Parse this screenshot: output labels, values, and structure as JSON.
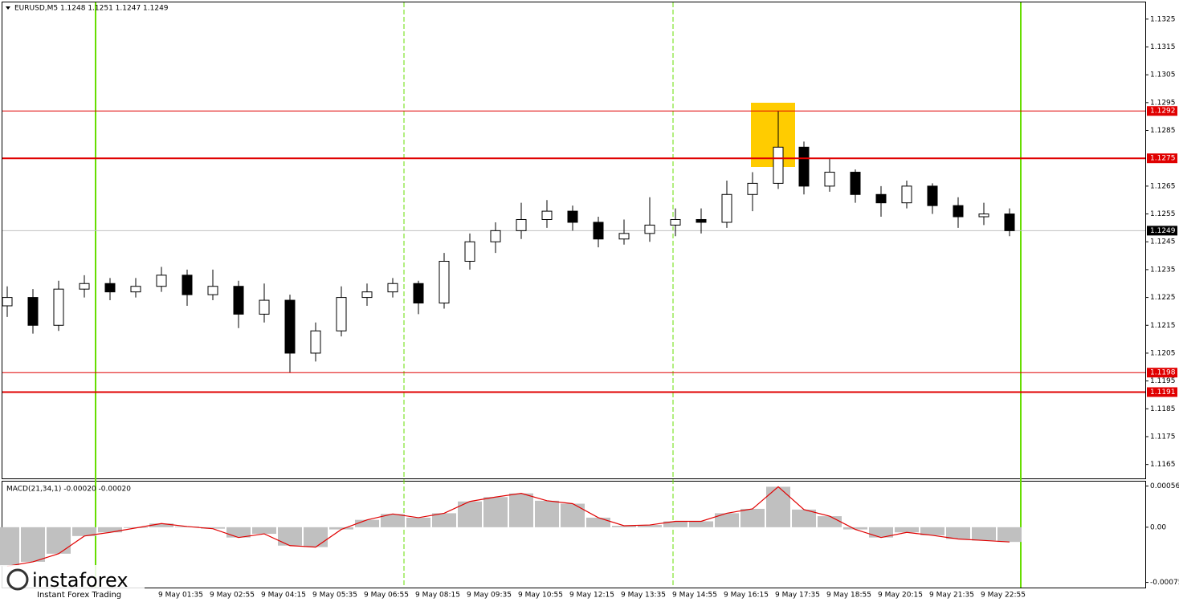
{
  "chart_data": {
    "type": "candlestick",
    "title": "EURUSD,M5  1.1248 1.1251 1.1247 1.1249",
    "open": [
      1.1222,
      1.1225,
      1.1215,
      1.1228,
      1.123,
      1.1227,
      1.1229,
      1.1233,
      1.1226,
      1.1229,
      1.1219,
      1.1224,
      1.1205,
      1.1213,
      1.1225,
      1.1227,
      1.123,
      1.1223,
      1.1238,
      1.1245,
      1.1249,
      1.1253,
      1.1256,
      1.1252,
      1.1246,
      1.1248,
      1.1251,
      1.1253,
      1.1252,
      1.1262,
      1.1266,
      1.1279,
      1.1265,
      1.127,
      1.1262,
      1.1259,
      1.1265,
      1.1258,
      1.1254,
      1.1255
    ],
    "high": [
      1.1229,
      1.1228,
      1.1231,
      1.1233,
      1.1232,
      1.1232,
      1.1236,
      1.1235,
      1.1235,
      1.1231,
      1.123,
      1.1226,
      1.1216,
      1.1229,
      1.123,
      1.1232,
      1.1231,
      1.1241,
      1.1248,
      1.1252,
      1.1259,
      1.126,
      1.1258,
      1.1254,
      1.1253,
      1.1261,
      1.1257,
      1.1257,
      1.1267,
      1.127,
      1.1292,
      1.1281,
      1.1275,
      1.1271,
      1.1265,
      1.1267,
      1.1266,
      1.1261,
      1.1259,
      1.1257
    ],
    "low": [
      1.1218,
      1.1212,
      1.1213,
      1.1225,
      1.1224,
      1.1225,
      1.1227,
      1.1222,
      1.1224,
      1.1214,
      1.1216,
      1.1198,
      1.1202,
      1.1211,
      1.1222,
      1.1225,
      1.1219,
      1.1221,
      1.1235,
      1.1241,
      1.1246,
      1.125,
      1.1249,
      1.1243,
      1.1244,
      1.1245,
      1.1247,
      1.1248,
      1.125,
      1.1256,
      1.1264,
      1.1262,
      1.1263,
      1.1259,
      1.1254,
      1.1257,
      1.1255,
      1.125,
      1.1251,
      1.1247
    ],
    "close": [
      1.1225,
      1.1215,
      1.1228,
      1.123,
      1.1227,
      1.1229,
      1.1233,
      1.1226,
      1.1229,
      1.1219,
      1.1224,
      1.1205,
      1.1213,
      1.1225,
      1.1227,
      1.123,
      1.1223,
      1.1238,
      1.1245,
      1.1249,
      1.1253,
      1.1256,
      1.1252,
      1.1246,
      1.1248,
      1.1251,
      1.1253,
      1.1252,
      1.1262,
      1.1266,
      1.1279,
      1.1265,
      1.127,
      1.1262,
      1.1259,
      1.1265,
      1.1258,
      1.1254,
      1.1255,
      1.1249
    ],
    "up_color": "#ffffff",
    "down_color": "#000000",
    "ylim": [
      1.116,
      1.1331
    ],
    "yticks": [
      1.1325,
      1.1315,
      1.1305,
      1.1295,
      1.1285,
      1.1265,
      1.1255,
      1.1245,
      1.1235,
      1.1225,
      1.1215,
      1.1205,
      1.1195,
      1.1185,
      1.1175,
      1.1165
    ],
    "levels": [
      {
        "value": 1.1292,
        "color": "#e00000",
        "width": 1
      },
      {
        "value": 1.1275,
        "color": "#e00000",
        "width": 2
      },
      {
        "value": 1.1198,
        "color": "#e00000",
        "width": 1
      },
      {
        "value": 1.1191,
        "color": "#e00000",
        "width": 2
      }
    ],
    "last_price": 1.1249,
    "xlabels": [
      "9 May 01:35",
      "9 May 02:55",
      "9 May 04:15",
      "9 May 05:35",
      "9 May 06:55",
      "9 May 08:15",
      "9 May 09:35",
      "9 May 10:55",
      "9 May 12:15",
      "9 May 13:35",
      "9 May 14:55",
      "9 May 16:15",
      "9 May 17:35",
      "9 May 18:55",
      "9 May 20:15",
      "9 May 21:35",
      "9 May 22:55"
    ],
    "macd": {
      "label": "MACD(21,34,1) -0.00020 -0.00020",
      "values": [
        -0.00053,
        -0.00047,
        -0.00036,
        -0.00012,
        -7e-05,
        -1e-05,
        5e-05,
        1e-05,
        -2e-05,
        -0.00014,
        -9e-05,
        -0.00025,
        -0.00027,
        -3e-05,
        0.0001,
        0.00018,
        0.00013,
        0.00019,
        0.00035,
        0.00041,
        0.00046,
        0.00036,
        0.00032,
        0.00013,
        2e-05,
        3e-05,
        8e-05,
        8e-05,
        0.00019,
        0.00025,
        0.00055,
        0.00024,
        0.00015,
        -3e-05,
        -0.00014,
        -7e-05,
        -0.00011,
        -0.00016,
        -0.00018,
        -0.0002
      ],
      "bar_color": "#c0c0c0",
      "line_color": "#e00000",
      "ylim": [
        -0.00082,
        0.00062
      ],
      "yticks": [
        0.00056,
        {
          "value": 0,
          "label": "0.00"
        },
        -0.00075
      ]
    },
    "watermark": {
      "brand": "instaforex",
      "tagline": "Instant Forex Trading"
    }
  }
}
